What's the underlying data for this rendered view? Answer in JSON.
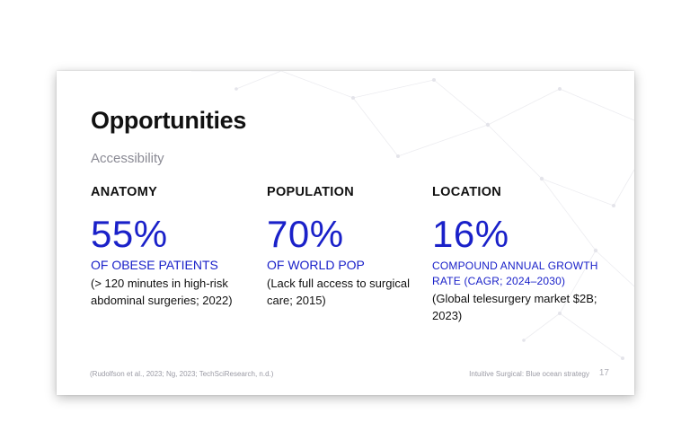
{
  "slide": {
    "title": "Opportunities",
    "subtitle": "Accessibility",
    "columns": [
      {
        "heading": "ANATOMY",
        "value": "55%",
        "label": "OF OBESE PATIENTS",
        "note": "(> 120 minutes in high-risk abdominal surgeries; 2022)"
      },
      {
        "heading": "POPULATION",
        "value": "70%",
        "label": "OF WORLD POP",
        "note": "(Lack full access to surgical care; 2015)"
      },
      {
        "heading": "LOCATION",
        "value": "16%",
        "label": "COMPOUND ANNUAL GROWTH RATE (CAGR; 2024–2030)",
        "note": "(Global telesurgery market $2B; 2023)"
      }
    ],
    "footer_citation": "(Rudolfson et al., 2023; Ng, 2023; TechSciResearch, n.d.)",
    "footer_title": "Intuitive Surgical: Blue ocean strategy",
    "page_number": "17"
  },
  "colors": {
    "accent": "#1a21c9",
    "text": "#111111",
    "muted": "#8a8a94"
  }
}
